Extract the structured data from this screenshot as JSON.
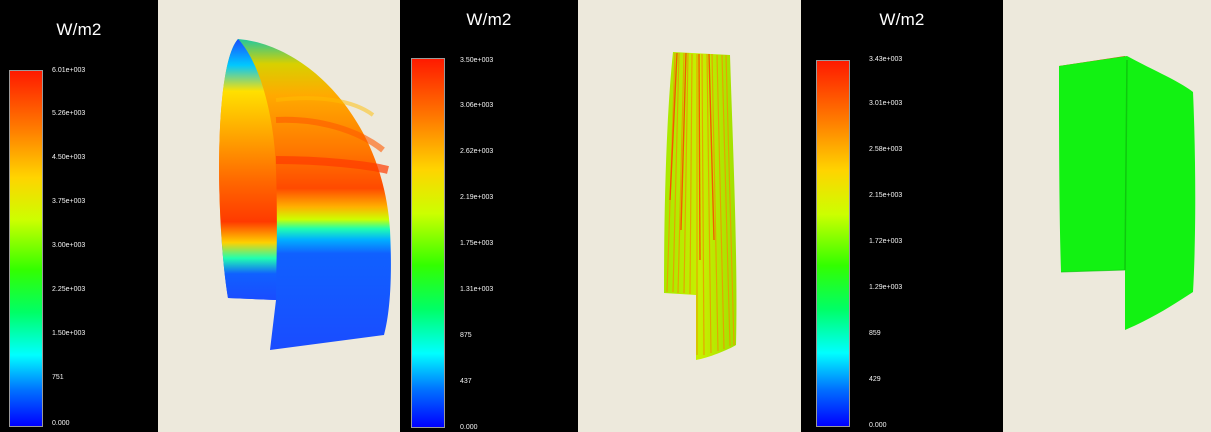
{
  "panels": [
    {
      "title": "W/m2",
      "ticks": [
        "6.01e+003",
        "5.26e+003",
        "4.50e+003",
        "3.75e+003",
        "3.00e+003",
        "2.25e+003",
        "1.50e+003",
        "751",
        "0.000"
      ]
    },
    {
      "title": "W/m2",
      "ticks": [
        "3.50e+003",
        "3.06e+003",
        "2.62e+003",
        "2.19e+003",
        "1.75e+003",
        "1.31e+003",
        "875",
        "437",
        "0.000"
      ]
    },
    {
      "title": "W/m2",
      "ticks": [
        "3.43e+003",
        "3.01e+003",
        "2.58e+003",
        "2.15e+003",
        "1.72e+003",
        "1.29e+003",
        "859",
        "429",
        "0.000"
      ]
    }
  ],
  "colors": {
    "legend_background": "#000000",
    "view_background": "#ede9dc",
    "scale_max": "#ff0000",
    "scale_min": "#0000ff"
  }
}
